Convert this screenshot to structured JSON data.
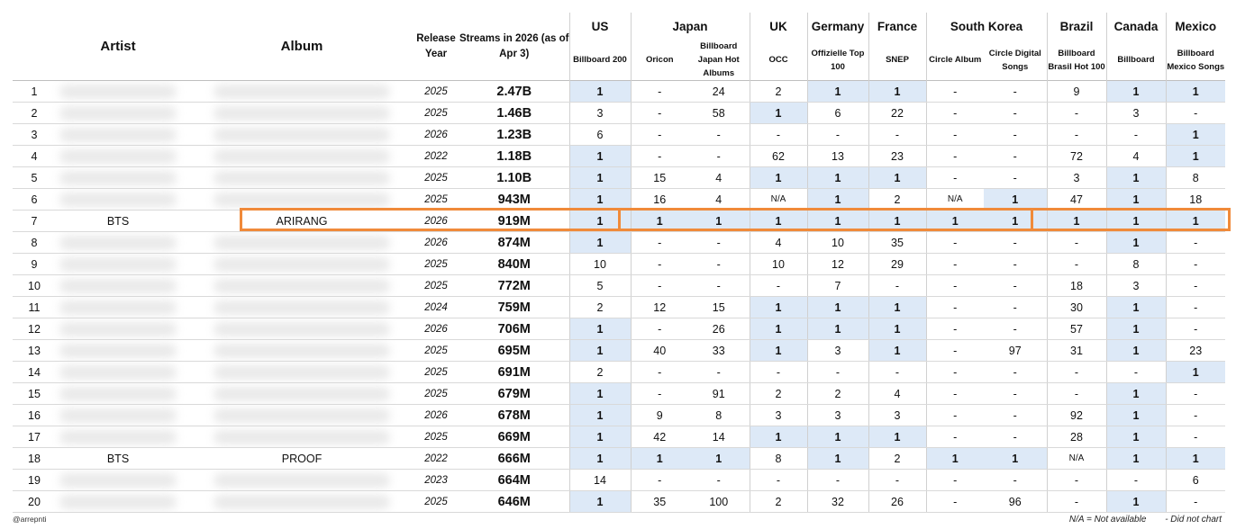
{
  "headers": {
    "artist": "Artist",
    "album": "Album",
    "release_year": "Release Year",
    "streams": "Streams in 2026 (as of Apr 3)"
  },
  "countries": [
    {
      "name": "US",
      "charts": [
        "Billboard 200"
      ]
    },
    {
      "name": "Japan",
      "charts": [
        "Oricon",
        "Billboard Japan Hot Albums"
      ]
    },
    {
      "name": "UK",
      "charts": [
        "OCC"
      ]
    },
    {
      "name": "Germany",
      "charts": [
        "Offizielle Top 100"
      ]
    },
    {
      "name": "France",
      "charts": [
        "SNEP"
      ]
    },
    {
      "name": "South Korea",
      "charts": [
        "Circle Album",
        "Circle Digital Songs"
      ]
    },
    {
      "name": "Brazil",
      "charts": [
        "Billboard Brasil Hot 100"
      ]
    },
    {
      "name": "Canada",
      "charts": [
        "Billboard"
      ]
    },
    {
      "name": "Mexico",
      "charts": [
        "Billboard Mexico Songs"
      ]
    }
  ],
  "rows": [
    {
      "rank": "1",
      "artist": "",
      "album": "",
      "year": "2025",
      "streams": "2.47B",
      "positions": [
        "1",
        "-",
        "24",
        "2",
        "1",
        "1",
        "-",
        "-",
        "9",
        "1",
        "1"
      ]
    },
    {
      "rank": "2",
      "artist": "",
      "album": "",
      "year": "2025",
      "streams": "1.46B",
      "positions": [
        "3",
        "-",
        "58",
        "1",
        "6",
        "22",
        "-",
        "-",
        "-",
        "3",
        "-"
      ]
    },
    {
      "rank": "3",
      "artist": "",
      "album": "",
      "year": "2026",
      "streams": "1.23B",
      "positions": [
        "6",
        "-",
        "-",
        "-",
        "-",
        "-",
        "-",
        "-",
        "-",
        "-",
        "1"
      ]
    },
    {
      "rank": "4",
      "artist": "",
      "album": "",
      "year": "2022",
      "streams": "1.18B",
      "positions": [
        "1",
        "-",
        "-",
        "62",
        "13",
        "23",
        "-",
        "-",
        "72",
        "4",
        "1"
      ]
    },
    {
      "rank": "5",
      "artist": "",
      "album": "",
      "year": "2025",
      "streams": "1.10B",
      "positions": [
        "1",
        "15",
        "4",
        "1",
        "1",
        "1",
        "-",
        "-",
        "3",
        "1",
        "8"
      ]
    },
    {
      "rank": "6",
      "artist": "",
      "album": "",
      "year": "2025",
      "streams": "943M",
      "positions": [
        "1",
        "16",
        "4",
        "N/A",
        "1",
        "2",
        "N/A",
        "1",
        "47",
        "1",
        "18"
      ]
    },
    {
      "rank": "7",
      "artist": "BTS",
      "album": "ARIRANG",
      "year": "2026",
      "streams": "919M",
      "positions": [
        "1",
        "1",
        "1",
        "1",
        "1",
        "1",
        "1",
        "1",
        "1",
        "1",
        "1"
      ]
    },
    {
      "rank": "8",
      "artist": "",
      "album": "",
      "year": "2026",
      "streams": "874M",
      "positions": [
        "1",
        "-",
        "-",
        "4",
        "10",
        "35",
        "-",
        "-",
        "-",
        "1",
        "-"
      ]
    },
    {
      "rank": "9",
      "artist": "",
      "album": "",
      "year": "2025",
      "streams": "840M",
      "positions": [
        "10",
        "-",
        "-",
        "10",
        "12",
        "29",
        "-",
        "-",
        "-",
        "8",
        "-"
      ]
    },
    {
      "rank": "10",
      "artist": "",
      "album": "",
      "year": "2025",
      "streams": "772M",
      "positions": [
        "5",
        "-",
        "-",
        "-",
        "7",
        "-",
        "-",
        "-",
        "18",
        "3",
        "-"
      ]
    },
    {
      "rank": "11",
      "artist": "",
      "album": "",
      "year": "2024",
      "streams": "759M",
      "positions": [
        "2",
        "12",
        "15",
        "1",
        "1",
        "1",
        "-",
        "-",
        "30",
        "1",
        "-"
      ]
    },
    {
      "rank": "12",
      "artist": "",
      "album": "",
      "year": "2026",
      "streams": "706M",
      "positions": [
        "1",
        "-",
        "26",
        "1",
        "1",
        "1",
        "-",
        "-",
        "57",
        "1",
        "-"
      ]
    },
    {
      "rank": "13",
      "artist": "",
      "album": "",
      "year": "2025",
      "streams": "695M",
      "positions": [
        "1",
        "40",
        "33",
        "1",
        "3",
        "1",
        "-",
        "97",
        "31",
        "1",
        "23"
      ]
    },
    {
      "rank": "14",
      "artist": "",
      "album": "",
      "year": "2025",
      "streams": "691M",
      "positions": [
        "2",
        "-",
        "-",
        "-",
        "-",
        "-",
        "-",
        "-",
        "-",
        "-",
        "1"
      ]
    },
    {
      "rank": "15",
      "artist": "",
      "album": "",
      "year": "2025",
      "streams": "679M",
      "positions": [
        "1",
        "-",
        "91",
        "2",
        "2",
        "4",
        "-",
        "-",
        "-",
        "1",
        "-"
      ]
    },
    {
      "rank": "16",
      "artist": "",
      "album": "",
      "year": "2026",
      "streams": "678M",
      "positions": [
        "1",
        "9",
        "8",
        "3",
        "3",
        "3",
        "-",
        "-",
        "92",
        "1",
        "-"
      ]
    },
    {
      "rank": "17",
      "artist": "",
      "album": "",
      "year": "2025",
      "streams": "669M",
      "positions": [
        "1",
        "42",
        "14",
        "1",
        "1",
        "1",
        "-",
        "-",
        "28",
        "1",
        "-"
      ]
    },
    {
      "rank": "18",
      "artist": "BTS",
      "album": "PROOF",
      "year": "2022",
      "streams": "666M",
      "positions": [
        "1",
        "1",
        "1",
        "8",
        "1",
        "2",
        "1",
        "1",
        "N/A",
        "1",
        "1"
      ]
    },
    {
      "rank": "19",
      "artist": "",
      "album": "",
      "year": "2023",
      "streams": "664M",
      "positions": [
        "14",
        "-",
        "-",
        "-",
        "-",
        "-",
        "-",
        "-",
        "-",
        "-",
        "6"
      ]
    },
    {
      "rank": "20",
      "artist": "",
      "album": "",
      "year": "2025",
      "streams": "646M",
      "positions": [
        "1",
        "35",
        "100",
        "2",
        "32",
        "26",
        "-",
        "96",
        "-",
        "1",
        "-"
      ]
    }
  ],
  "footer": {
    "credit": "@arrepnti",
    "legend_na": "N/A = Not available",
    "legend_dash": "- Did not chart"
  }
}
